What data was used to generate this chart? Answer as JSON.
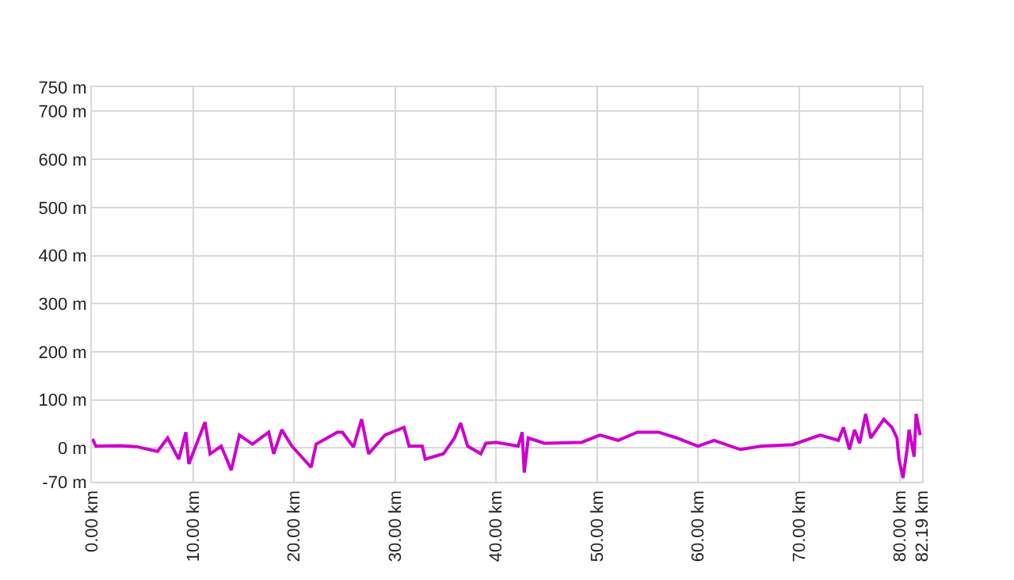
{
  "chart_data": {
    "type": "line",
    "x": [
      0.05,
      0.4,
      2.8,
      4.4,
      6.5,
      7.5,
      8.6,
      9.3,
      9.6,
      11.2,
      11.7,
      12.8,
      13.8,
      14.6,
      15.9,
      17.5,
      18.0,
      18.8,
      19.8,
      21.7,
      22.2,
      24.3,
      24.8,
      25.9,
      26.7,
      27.4,
      29.0,
      30.9,
      31.4,
      32.7,
      33.0,
      34.8,
      35.9,
      36.5,
      37.2,
      38.5,
      39.0,
      40.0,
      42.2,
      42.6,
      42.8,
      43.2,
      44.8,
      48.5,
      50.3,
      52.1,
      54.0,
      56.1,
      57.9,
      60.0,
      61.6,
      64.2,
      66.3,
      69.4,
      72.1,
      73.9,
      74.4,
      75.0,
      75.5,
      76.0,
      76.6,
      77.1,
      78.4,
      79.2,
      79.7,
      79.9,
      80.3,
      80.7,
      80.9,
      81.4,
      81.6,
      82.0
    ],
    "series": [
      {
        "color": "#cc00cc",
        "values": [
          19,
          4,
          5,
          3,
          -7,
          21,
          -23,
          33,
          -33,
          54,
          -12,
          4,
          -46,
          27,
          8,
          33,
          -12,
          38,
          4,
          -40,
          8,
          33,
          33,
          2,
          60,
          -12,
          27,
          43,
          4,
          4,
          -23,
          -12,
          21,
          52,
          4,
          -12,
          10,
          12,
          4,
          33,
          -51,
          21,
          10,
          12,
          27,
          16,
          33,
          33,
          21,
          4,
          16,
          -3,
          4,
          7,
          27,
          16,
          43,
          -3,
          38,
          10,
          71,
          21,
          60,
          43,
          21,
          -23,
          -62,
          -3,
          38,
          -18,
          71,
          27
        ]
      }
    ],
    "xlim": [
      0,
      82.19
    ],
    "xticks": [
      {
        "value": 0,
        "label": "0.00 km"
      },
      {
        "value": 10,
        "label": "10.00 km"
      },
      {
        "value": 20,
        "label": "20.00 km"
      },
      {
        "value": 30,
        "label": "30.00 km"
      },
      {
        "value": 40,
        "label": "40.00 km"
      },
      {
        "value": 50,
        "label": "50.00 km"
      },
      {
        "value": 60,
        "label": "60.00 km"
      },
      {
        "value": 70,
        "label": "70.00 km"
      },
      {
        "value": 80,
        "label": "80.00 km"
      },
      {
        "value": 82.19,
        "label": "82.19 km"
      }
    ],
    "ylim": [
      -70,
      750
    ],
    "yticks": [
      {
        "value": -70,
        "label": "-70 m"
      },
      {
        "value": 0,
        "label": "0 m"
      },
      {
        "value": 100,
        "label": "100 m"
      },
      {
        "value": 200,
        "label": "200 m"
      },
      {
        "value": 300,
        "label": "300 m"
      },
      {
        "value": 400,
        "label": "400 m"
      },
      {
        "value": 500,
        "label": "500 m"
      },
      {
        "value": 600,
        "label": "600 m"
      },
      {
        "value": 700,
        "label": "700 m"
      },
      {
        "value": 750,
        "label": "750 m"
      }
    ],
    "grid": true,
    "marker": "none",
    "line_style": "solid"
  }
}
